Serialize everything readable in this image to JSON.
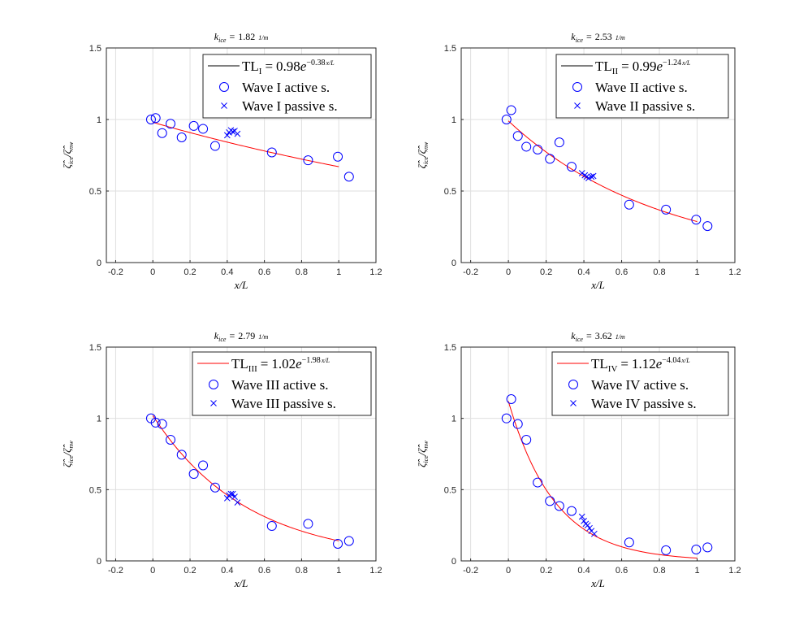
{
  "chart_data": [
    {
      "type": "scatter",
      "title": {
        "k": "k",
        "k_sub": "ice",
        "eq": "=",
        "value": "1.82",
        "unit": "1/m"
      },
      "xlabel": "x/L",
      "ylabel": {
        "sym": "ζ̂",
        "sub_num": "ice",
        "slash": "/",
        "sub_den": "nw"
      },
      "xlim": [
        -0.25,
        1.2
      ],
      "ylim": [
        0,
        1.5
      ],
      "xticks": [
        "-0.2",
        "0",
        "0.2",
        "0.4",
        "0.6",
        "0.8",
        "1",
        "1.2"
      ],
      "yticks": [
        "0",
        "0.5",
        "1",
        "1.5"
      ],
      "grid": true,
      "legend": {
        "placement": "top-right",
        "fit_name": "TL",
        "fit_sub": "I",
        "eq": "=",
        "fit_coef": "0.98",
        "e": "e",
        "fit_exp": "−0.38",
        "exp_frac": "x/L",
        "active": "Wave I active s.",
        "passive": "Wave I passive s.",
        "line_color": "#000000"
      },
      "fit": {
        "a": 0.98,
        "b": -0.38,
        "x_range": [
          0,
          1
        ],
        "color": "#ff0000"
      },
      "active": {
        "color": "#0000ff",
        "x": [
          -0.01,
          0.015,
          0.05,
          0.095,
          0.155,
          0.22,
          0.27,
          0.335,
          0.64,
          0.835,
          0.995,
          1.055
        ],
        "y": [
          1.0,
          1.01,
          0.905,
          0.97,
          0.875,
          0.955,
          0.935,
          0.815,
          0.77,
          0.715,
          0.74,
          0.6
        ]
      },
      "passive": {
        "color": "#0000ff",
        "x": [
          0.4,
          0.41,
          0.42,
          0.43,
          0.44,
          0.455
        ],
        "y": [
          0.89,
          0.91,
          0.925,
          0.915,
          0.92,
          0.9
        ]
      }
    },
    {
      "type": "scatter",
      "title": {
        "k": "k",
        "k_sub": "ice",
        "eq": "=",
        "value": "2.53",
        "unit": "1/m"
      },
      "xlabel": "x/L",
      "ylabel": {
        "sym": "ζ̂",
        "sub_num": "ice",
        "slash": "/",
        "sub_den": "nw"
      },
      "xlim": [
        -0.25,
        1.2
      ],
      "ylim": [
        0,
        1.5
      ],
      "xticks": [
        "-0.2",
        "0",
        "0.2",
        "0.4",
        "0.6",
        "0.8",
        "1",
        "1.2"
      ],
      "yticks": [
        "0",
        "0.5",
        "1",
        "1.5"
      ],
      "grid": true,
      "legend": {
        "placement": "top-right",
        "fit_name": "TL",
        "fit_sub": "II",
        "eq": "=",
        "fit_coef": "0.99",
        "e": "e",
        "fit_exp": "−1.24",
        "exp_frac": "x/L",
        "active": "Wave II active s.",
        "passive": "Wave II passive s.",
        "line_color": "#000000"
      },
      "fit": {
        "a": 0.99,
        "b": -1.24,
        "x_range": [
          0,
          1
        ],
        "color": "#ff0000"
      },
      "active": {
        "color": "#0000ff",
        "x": [
          -0.01,
          0.015,
          0.05,
          0.095,
          0.155,
          0.22,
          0.27,
          0.335,
          0.64,
          0.835,
          0.995,
          1.055
        ],
        "y": [
          1.0,
          1.065,
          0.885,
          0.81,
          0.79,
          0.725,
          0.84,
          0.67,
          0.405,
          0.37,
          0.3,
          0.255
        ]
      },
      "passive": {
        "color": "#0000ff",
        "x": [
          0.39,
          0.405,
          0.415,
          0.425,
          0.44,
          0.45
        ],
        "y": [
          0.625,
          0.61,
          0.6,
          0.59,
          0.6,
          0.605
        ]
      }
    },
    {
      "type": "scatter",
      "title": {
        "k": "k",
        "k_sub": "ice",
        "eq": "=",
        "value": "2.79",
        "unit": "1/m"
      },
      "xlabel": "x/L",
      "ylabel": {
        "sym": "ζ̂",
        "sub_num": "ice",
        "slash": "/",
        "sub_den": "nw"
      },
      "xlim": [
        -0.25,
        1.2
      ],
      "ylim": [
        0,
        1.5
      ],
      "xticks": [
        "-0.2",
        "0",
        "0.2",
        "0.4",
        "0.6",
        "0.8",
        "1",
        "1.2"
      ],
      "yticks": [
        "0",
        "0.5",
        "1",
        "1.5"
      ],
      "grid": true,
      "legend": {
        "placement": "top-right",
        "fit_name": "TL",
        "fit_sub": "III",
        "eq": "=",
        "fit_coef": "1.02",
        "e": "e",
        "fit_exp": "−1.98",
        "exp_frac": "x/L",
        "active": "Wave III active s.",
        "passive": "Wave III passive s.",
        "line_color": "#ff0000"
      },
      "fit": {
        "a": 1.02,
        "b": -1.98,
        "x_range": [
          0,
          1
        ],
        "color": "#ff0000"
      },
      "active": {
        "color": "#0000ff",
        "x": [
          -0.01,
          0.015,
          0.05,
          0.095,
          0.155,
          0.22,
          0.27,
          0.335,
          0.64,
          0.835,
          0.995,
          1.055
        ],
        "y": [
          1.0,
          0.97,
          0.96,
          0.85,
          0.745,
          0.61,
          0.67,
          0.515,
          0.245,
          0.26,
          0.12,
          0.14
        ]
      },
      "passive": {
        "color": "#0000ff",
        "x": [
          0.4,
          0.41,
          0.42,
          0.43,
          0.44,
          0.455
        ],
        "y": [
          0.44,
          0.46,
          0.47,
          0.47,
          0.45,
          0.41
        ]
      }
    },
    {
      "type": "scatter",
      "title": {
        "k": "k",
        "k_sub": "ice",
        "eq": "=",
        "value": "3.62",
        "unit": "1/m"
      },
      "xlabel": "x/L",
      "ylabel": {
        "sym": "ζ̂",
        "sub_num": "ice",
        "slash": "/",
        "sub_den": "nw"
      },
      "xlim": [
        -0.25,
        1.2
      ],
      "ylim": [
        0,
        1.5
      ],
      "xticks": [
        "-0.2",
        "0",
        "0.2",
        "0.4",
        "0.6",
        "0.8",
        "1",
        "1.2"
      ],
      "yticks": [
        "0",
        "0.5",
        "1",
        "1.5"
      ],
      "grid": true,
      "legend": {
        "placement": "top-right",
        "fit_name": "TL",
        "fit_sub": "IV",
        "eq": "=",
        "fit_coef": "1.12",
        "e": "e",
        "fit_exp": "−4.04",
        "exp_frac": "x/L",
        "active": "Wave IV active s.",
        "passive": "Wave IV passive s.",
        "line_color": "#ff0000"
      },
      "fit": {
        "a": 1.12,
        "b": -4.04,
        "x_range": [
          0,
          1
        ],
        "color": "#ff0000"
      },
      "active": {
        "color": "#0000ff",
        "x": [
          -0.01,
          0.015,
          0.05,
          0.095,
          0.155,
          0.22,
          0.27,
          0.335,
          0.64,
          0.835,
          0.995,
          1.055
        ],
        "y": [
          1.0,
          1.135,
          0.96,
          0.85,
          0.55,
          0.42,
          0.385,
          0.35,
          0.13,
          0.075,
          0.08,
          0.095
        ]
      },
      "passive": {
        "color": "#0000ff",
        "x": [
          0.39,
          0.4,
          0.41,
          0.42,
          0.43,
          0.44,
          0.455
        ],
        "y": [
          0.31,
          0.28,
          0.26,
          0.25,
          0.23,
          0.21,
          0.19
        ]
      }
    }
  ]
}
